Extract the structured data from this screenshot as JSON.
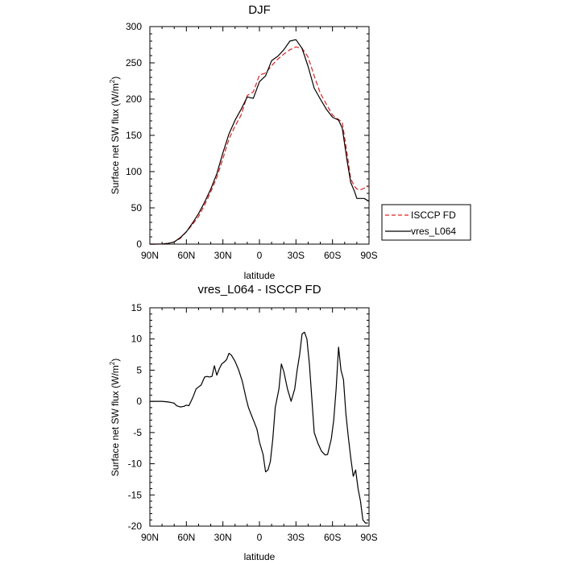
{
  "chart_data": [
    {
      "type": "line",
      "title": "DJF",
      "xlabel": "latitude",
      "ylabel_main": "Surface net SW flux (W/m",
      "ylabel_sup": "2",
      "ylabel_tail": ")",
      "xlim": [
        90,
        -90
      ],
      "ylim": [
        0,
        300
      ],
      "x_ticks": [
        {
          "value": 90,
          "label": "90N"
        },
        {
          "value": 60,
          "label": "60N"
        },
        {
          "value": 30,
          "label": "30N"
        },
        {
          "value": 0,
          "label": "0"
        },
        {
          "value": -30,
          "label": "30S"
        },
        {
          "value": -60,
          "label": "60S"
        },
        {
          "value": -90,
          "label": "90S"
        }
      ],
      "y_ticks": [
        0,
        50,
        100,
        150,
        200,
        250,
        300
      ],
      "legend_position": "right",
      "series": [
        {
          "name": "ISCCP FD",
          "color": "#e02020",
          "dash": true,
          "x": [
            90,
            85,
            80,
            75,
            70,
            65,
            60,
            55,
            50,
            45,
            40,
            35,
            30,
            25,
            20,
            15,
            10,
            5,
            0,
            -5,
            -10,
            -15,
            -20,
            -25,
            -30,
            -35,
            -40,
            -45,
            -50,
            -55,
            -60,
            -65,
            -68,
            -72,
            -75,
            -78,
            -80,
            -83,
            -86,
            -90
          ],
          "y": [
            0,
            0,
            0.2,
            1,
            3,
            8,
            17,
            27,
            38,
            54,
            72,
            92,
            118,
            145,
            163,
            178,
            205,
            210,
            233,
            236,
            246,
            255,
            262,
            268,
            272,
            270,
            258,
            232,
            208,
            193,
            178,
            172,
            168,
            125,
            90,
            80,
            76,
            75,
            77,
            80
          ]
        },
        {
          "name": "vres_L064",
          "color": "#000000",
          "dash": false,
          "x": [
            90,
            85,
            80,
            75,
            70,
            65,
            60,
            55,
            50,
            45,
            40,
            35,
            30,
            25,
            20,
            15,
            10,
            5,
            0,
            -5,
            -10,
            -15,
            -20,
            -25,
            -30,
            -35,
            -40,
            -45,
            -50,
            -55,
            -60,
            -65,
            -68,
            -72,
            -75,
            -78,
            -80,
            -83,
            -86,
            -90
          ],
          "y": [
            0,
            0,
            0.2,
            1,
            3,
            9,
            17,
            29,
            42,
            58,
            76,
            97,
            126,
            152,
            171,
            186,
            203,
            201,
            224,
            232,
            253,
            259,
            268,
            280,
            282,
            270,
            245,
            215,
            200,
            186,
            175,
            171,
            160,
            115,
            85,
            73,
            63,
            63,
            63,
            59
          ]
        }
      ]
    },
    {
      "type": "line",
      "title": "vres_L064 - ISCCP FD",
      "xlabel": "latitude",
      "ylabel_main": "Surface net SW flux (W/m",
      "ylabel_sup": "2",
      "ylabel_tail": ")",
      "xlim": [
        90,
        -90
      ],
      "ylim": [
        -20,
        15
      ],
      "x_ticks": [
        {
          "value": 90,
          "label": "90N"
        },
        {
          "value": 60,
          "label": "60N"
        },
        {
          "value": 30,
          "label": "30N"
        },
        {
          "value": 0,
          "label": "0"
        },
        {
          "value": -30,
          "label": "30S"
        },
        {
          "value": -60,
          "label": "60S"
        },
        {
          "value": -90,
          "label": "90S"
        }
      ],
      "y_ticks": [
        -20,
        -15,
        -10,
        -5,
        0,
        5,
        10,
        15
      ],
      "series": [
        {
          "color": "#000000",
          "dash": false,
          "x": [
            90,
            85,
            80,
            75,
            72,
            70,
            68,
            65,
            62,
            60,
            58,
            55,
            52,
            50,
            48,
            45,
            43,
            41,
            39,
            37,
            35,
            33,
            31,
            29,
            27,
            25,
            23,
            20,
            17,
            14,
            11,
            9,
            7,
            4,
            2,
            0,
            -3,
            -5,
            -7,
            -9,
            -11,
            -13,
            -16,
            -18,
            -20,
            -23,
            -26,
            -29,
            -31,
            -33,
            -35,
            -37,
            -39,
            -41,
            -43,
            -45,
            -48,
            -51,
            -54,
            -56,
            -59,
            -61,
            -63,
            -65,
            -67,
            -69,
            -71,
            -73,
            -75,
            -77,
            -79,
            -81,
            -83,
            -85,
            -87,
            -89
          ],
          "y": [
            0,
            0,
            0,
            -0.1,
            -0.2,
            -0.3,
            -0.7,
            -0.9,
            -0.8,
            -0.6,
            -0.7,
            0.5,
            2,
            2.3,
            2.6,
            3.9,
            4.0,
            3.9,
            4.0,
            5.7,
            4.2,
            5.2,
            6.0,
            6.3,
            6.7,
            7.7,
            7.4,
            6.4,
            5.0,
            3.2,
            0.5,
            -1,
            -2,
            -3.5,
            -4.5,
            -6.5,
            -8.5,
            -11.3,
            -11,
            -9.6,
            -6,
            -1,
            2,
            6,
            4.8,
            2,
            0,
            2,
            5,
            7.5,
            10.8,
            11.1,
            10,
            6,
            0.5,
            -5,
            -6.7,
            -8,
            -8.6,
            -8.5,
            -6,
            -3,
            2,
            8.7,
            5,
            3.5,
            -2,
            -5.7,
            -9,
            -12,
            -11,
            -14,
            -16,
            -19,
            -19.5,
            -19.5
          ]
        }
      ]
    }
  ]
}
